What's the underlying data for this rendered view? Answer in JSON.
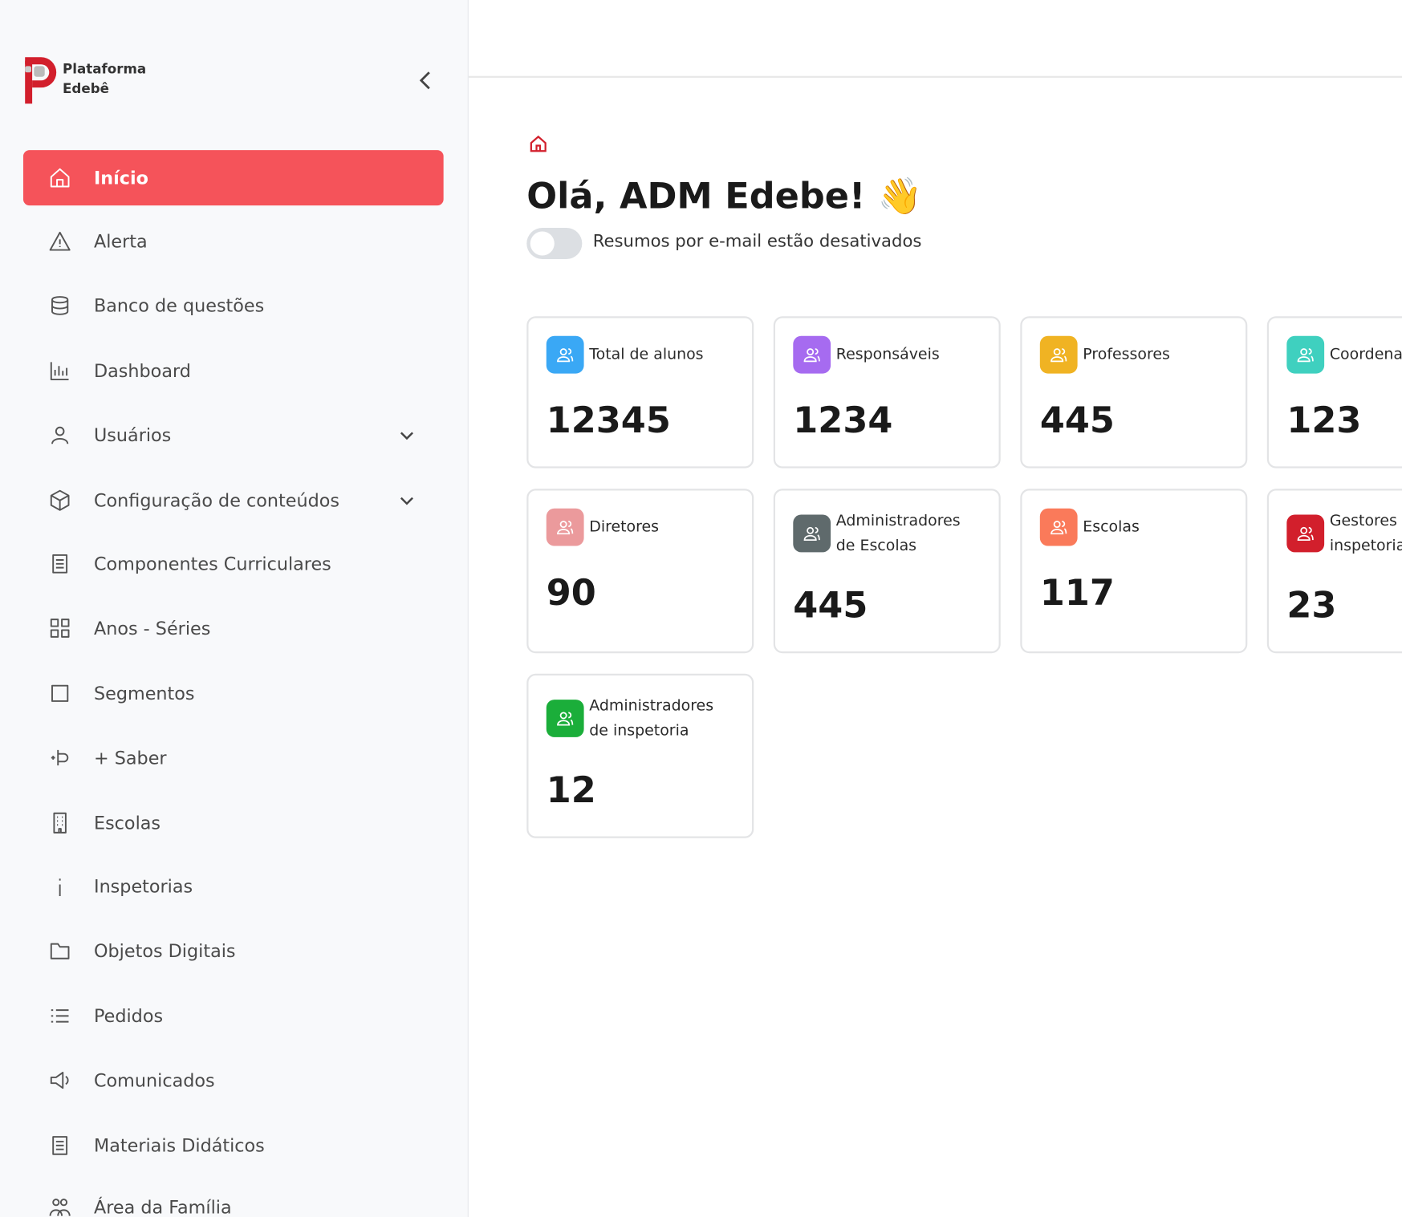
{
  "sidebar": {
    "brand": [
      "Plataforma",
      "Edebê"
    ],
    "menu": [
      {
        "label": "Início",
        "active": true
      },
      {
        "label": "Alerta"
      },
      {
        "label": "Banco de questões"
      },
      {
        "label": "Dashboard"
      },
      {
        "label": "Usuários",
        "expandable": true
      },
      {
        "label": "Configuração de conteúdos",
        "expandable": true
      },
      {
        "label": "Componentes Curriculares"
      },
      {
        "label": "Anos - Séries"
      },
      {
        "label": "Segmentos"
      },
      {
        "label": "+ Saber"
      },
      {
        "label": "Escolas"
      },
      {
        "label": "Inspetorias"
      },
      {
        "label": "Objetos Digitais"
      },
      {
        "label": "Pedidos"
      },
      {
        "label": "Comunicados"
      },
      {
        "label": "Materiais Didáticos"
      },
      {
        "label": "Área da Família"
      }
    ]
  },
  "header": {
    "greeting": "Olá, ADM Edebe!",
    "emoji": "👋",
    "toggle_label": "Resumos por e-mail estão desativados"
  },
  "cards": [
    {
      "label": "Total de alunos",
      "value": 12345,
      "color": "#3aa8f5"
    },
    {
      "label": "Responsáveis",
      "value": 1234,
      "color": "#a66bf0"
    },
    {
      "label": "Professores",
      "value": 445,
      "color": "#f0b323"
    },
    {
      "label": "Coordenadores",
      "value": 123,
      "color": "#3fd0bf"
    },
    {
      "label": "Diretores",
      "value": 90,
      "color": "#eb9a9c"
    },
    {
      "label": "Administradores de Escolas",
      "value": 445,
      "color": "#5f6a6c"
    },
    {
      "label": "Escolas",
      "value": 117,
      "color": "#fa7a5a"
    },
    {
      "label": "Gestores de inspetoria",
      "value": 23,
      "color": "#d21f2c"
    },
    {
      "label": "Administradores de inspetoria",
      "value": 12,
      "color": "#1bae3a"
    }
  ]
}
